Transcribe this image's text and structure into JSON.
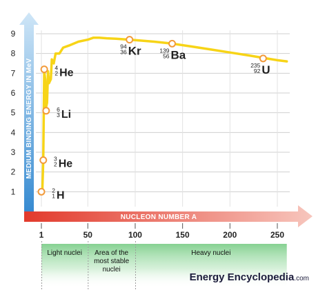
{
  "chart_data": {
    "type": "line",
    "ylabel": "MEDIUM BINDING ENERGY IN MeV",
    "xlabel": "NUCLEON NUMBER A",
    "y_ticks": [
      "1",
      "2",
      "3",
      "4",
      "5",
      "6",
      "7",
      "8",
      "9"
    ],
    "ylim": [
      0,
      9.5
    ],
    "x_ticks": [
      "1",
      "50",
      "100",
      "150",
      "200",
      "250"
    ],
    "xlim": [
      0,
      260
    ],
    "grid": true,
    "series": [
      {
        "x": [
          1,
          2,
          3,
          4,
          5,
          6,
          7,
          8,
          9,
          11,
          12,
          14,
          16,
          20,
          24,
          30,
          40,
          50,
          56,
          62,
          70,
          80,
          94,
          100,
          120,
          139,
          160,
          180,
          200,
          220,
          235,
          250,
          260
        ],
        "y": [
          1.0,
          1.1,
          2.6,
          7.1,
          6.7,
          5.3,
          5.5,
          7.1,
          6.5,
          6.7,
          7.7,
          7.5,
          8.0,
          8.0,
          8.3,
          8.4,
          8.6,
          8.7,
          8.8,
          8.8,
          8.77,
          8.75,
          8.7,
          8.68,
          8.6,
          8.5,
          8.35,
          8.2,
          8.05,
          7.9,
          7.78,
          7.66,
          7.6
        ]
      }
    ],
    "points": [
      {
        "x": 1,
        "y": 1.0,
        "symbol": "H",
        "mass": "2",
        "charge": "1"
      },
      {
        "x": 3,
        "y": 2.6,
        "symbol": "He",
        "mass": "3",
        "charge": "2"
      },
      {
        "x": 6,
        "y": 5.1,
        "symbol": "Li",
        "mass": "6",
        "charge": "3"
      },
      {
        "x": 4,
        "y": 7.2,
        "symbol": "He",
        "mass": "4",
        "charge": "2"
      },
      {
        "x": 94,
        "y": 8.7,
        "symbol": "Kr",
        "mass": "94",
        "charge": "36"
      },
      {
        "x": 139,
        "y": 8.5,
        "symbol": "Ba",
        "mass": "139",
        "charge": "56"
      },
      {
        "x": 235,
        "y": 7.75,
        "symbol": "U",
        "mass": "235",
        "charge": "92"
      }
    ],
    "regions": [
      {
        "label_lines": [
          "Light nuclei"
        ],
        "from": 1,
        "to": 50
      },
      {
        "label_lines": [
          "Area of the",
          "most stable",
          "nuclei"
        ],
        "from": 50,
        "to": 100
      },
      {
        "label_lines": [
          "Heavy nuclei"
        ],
        "from": 100,
        "to": 260
      }
    ],
    "colors": {
      "curve": "#f7d417",
      "point_stroke": "#f29a3a",
      "y_axis_arrow": "#3d97d6",
      "x_axis_arrow": "#e74c3c",
      "region_fill": "#7fcf8c",
      "grid": "#cfcfcf",
      "brand": "#1c1c3c"
    }
  },
  "branding": {
    "name_a": "Energy Encyclopedia",
    "name_b": ".com"
  }
}
